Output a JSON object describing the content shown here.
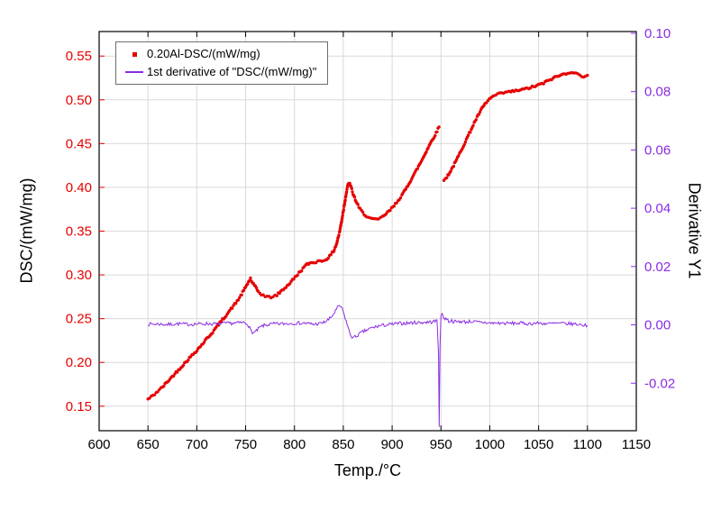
{
  "chart_data": {
    "type": "scatter+line",
    "title": "",
    "xlabel": "Temp./°C",
    "ylabel_left": "DSC/(mW/mg)",
    "ylabel_right": "Derivative Y1",
    "xlim": [
      600,
      1150
    ],
    "x_ticks": [
      600,
      650,
      700,
      750,
      800,
      850,
      900,
      950,
      1000,
      1050,
      1100,
      1150
    ],
    "ylim_left": [
      0.122,
      0.578
    ],
    "yticks_left": [
      0.15,
      0.2,
      0.25,
      0.3,
      0.35,
      0.4,
      0.45,
      0.5,
      0.55
    ],
    "ylim_right": [
      -0.0363,
      0.1006
    ],
    "yticks_right": [
      -0.02,
      0.0,
      0.02,
      0.04,
      0.06,
      0.08,
      0.1
    ],
    "grid": true,
    "legend_position": "top-left",
    "colors": {
      "grid": "#d9d9d9",
      "frame": "#000000",
      "left_axis": "#e60000",
      "right_axis": "#8a2be2",
      "x_tick": "#000000"
    },
    "legend": {
      "entries": [
        {
          "label": "0.20Al-DSC/(mW/mg)",
          "marker": "dot"
        },
        {
          "label": "1st derivative of \"DSC/(mW/mg)\"",
          "marker": "line"
        }
      ]
    },
    "series": [
      {
        "name": "0.20Al-DSC/(mW/mg)",
        "axis": "left",
        "type": "scatter",
        "color": "#e60000",
        "noise": 0.0012,
        "segments": [
          [
            [
              650,
              0.158
            ],
            [
              655,
              0.162
            ],
            [
              660,
              0.167
            ],
            [
              665,
              0.172
            ],
            [
              670,
              0.178
            ],
            [
              675,
              0.184
            ],
            [
              680,
              0.19
            ],
            [
              685,
              0.196
            ],
            [
              690,
              0.202
            ],
            [
              695,
              0.208
            ],
            [
              700,
              0.214
            ],
            [
              705,
              0.22
            ],
            [
              710,
              0.227
            ],
            [
              715,
              0.233
            ],
            [
              720,
              0.24
            ],
            [
              725,
              0.247
            ],
            [
              730,
              0.254
            ],
            [
              735,
              0.261
            ],
            [
              740,
              0.268
            ],
            [
              745,
              0.276
            ],
            [
              750,
              0.286
            ],
            [
              753,
              0.292
            ],
            [
              755,
              0.296
            ],
            [
              757,
              0.291
            ],
            [
              760,
              0.286
            ],
            [
              763,
              0.281
            ],
            [
              766,
              0.278
            ],
            [
              770,
              0.2755
            ],
            [
              774,
              0.2745
            ],
            [
              778,
              0.275
            ],
            [
              782,
              0.277
            ],
            [
              786,
              0.281
            ],
            [
              790,
              0.285
            ],
            [
              794,
              0.289
            ],
            [
              798,
              0.294
            ],
            [
              802,
              0.299
            ],
            [
              806,
              0.304
            ],
            [
              810,
              0.309
            ],
            [
              813,
              0.312
            ],
            [
              816,
              0.3135
            ],
            [
              820,
              0.3145
            ],
            [
              824,
              0.3155
            ],
            [
              828,
              0.316
            ],
            [
              832,
              0.3175
            ],
            [
              836,
              0.321
            ],
            [
              840,
              0.327
            ],
            [
              843,
              0.335
            ],
            [
              846,
              0.348
            ],
            [
              849,
              0.366
            ],
            [
              851,
              0.38
            ],
            [
              853,
              0.393
            ],
            [
              855,
              0.404
            ],
            [
              856,
              0.4055
            ],
            [
              858,
              0.4
            ],
            [
              860,
              0.3925
            ],
            [
              863,
              0.384
            ],
            [
              866,
              0.377
            ],
            [
              870,
              0.371
            ],
            [
              874,
              0.367
            ],
            [
              878,
              0.3645
            ],
            [
              882,
              0.363
            ],
            [
              886,
              0.3635
            ],
            [
              890,
              0.366
            ],
            [
              894,
              0.37
            ],
            [
              898,
              0.374
            ],
            [
              902,
              0.379
            ],
            [
              906,
              0.385
            ],
            [
              910,
              0.391
            ],
            [
              914,
              0.398
            ],
            [
              918,
              0.406
            ],
            [
              922,
              0.414
            ],
            [
              926,
              0.422
            ],
            [
              930,
              0.43
            ],
            [
              934,
              0.439
            ],
            [
              938,
              0.448
            ],
            [
              942,
              0.456
            ],
            [
              945,
              0.462
            ],
            [
              948,
              0.469
            ]
          ],
          [
            [
              953,
              0.408
            ],
            [
              956,
              0.412
            ],
            [
              959,
              0.417
            ],
            [
              962,
              0.423
            ],
            [
              965,
              0.429
            ],
            [
              968,
              0.436
            ],
            [
              971,
              0.443
            ],
            [
              974,
              0.45
            ],
            [
              977,
              0.457
            ],
            [
              980,
              0.464
            ],
            [
              983,
              0.471
            ],
            [
              986,
              0.478
            ],
            [
              989,
              0.484
            ],
            [
              992,
              0.49
            ],
            [
              995,
              0.495
            ],
            [
              998,
              0.499
            ],
            [
              1001,
              0.502
            ],
            [
              1004,
              0.5045
            ],
            [
              1008,
              0.506
            ],
            [
              1012,
              0.5075
            ],
            [
              1016,
              0.5085
            ],
            [
              1020,
              0.509
            ],
            [
              1025,
              0.51
            ],
            [
              1030,
              0.511
            ],
            [
              1035,
              0.512
            ],
            [
              1040,
              0.5135
            ],
            [
              1045,
              0.515
            ],
            [
              1050,
              0.517
            ],
            [
              1055,
              0.519
            ],
            [
              1060,
              0.522
            ],
            [
              1065,
              0.525
            ],
            [
              1070,
              0.527
            ],
            [
              1075,
              0.529
            ],
            [
              1080,
              0.531
            ],
            [
              1084,
              0.532
            ],
            [
              1088,
              0.53
            ],
            [
              1092,
              0.528
            ],
            [
              1096,
              0.527
            ],
            [
              1100,
              0.528
            ]
          ]
        ]
      },
      {
        "name": "1st derivative of \"DSC/(mW/mg)\"",
        "axis": "right",
        "type": "line",
        "color": "#8a2be2",
        "noise": 0.0006,
        "points": [
          [
            650,
            0.0002
          ],
          [
            660,
            0.0003
          ],
          [
            670,
            0.0001
          ],
          [
            680,
            0.0004
          ],
          [
            690,
            0.0002
          ],
          [
            700,
            0.0003
          ],
          [
            710,
            0.0004
          ],
          [
            720,
            0.0003
          ],
          [
            730,
            0.0005
          ],
          [
            740,
            0.0006
          ],
          [
            748,
            0.0008
          ],
          [
            752,
            0.0004
          ],
          [
            755,
            -0.0018
          ],
          [
            758,
            -0.0028
          ],
          [
            761,
            -0.0022
          ],
          [
            764,
            -0.001
          ],
          [
            768,
            -0.0003
          ],
          [
            772,
            0.0
          ],
          [
            776,
            0.0002
          ],
          [
            780,
            0.0003
          ],
          [
            790,
            0.0004
          ],
          [
            800,
            0.0006
          ],
          [
            810,
            0.0006
          ],
          [
            815,
            0.0004
          ],
          [
            820,
            0.0002
          ],
          [
            825,
            0.0004
          ],
          [
            830,
            0.0008
          ],
          [
            835,
            0.0018
          ],
          [
            838,
            0.0028
          ],
          [
            841,
            0.0042
          ],
          [
            844,
            0.0058
          ],
          [
            846,
            0.0066
          ],
          [
            848,
            0.006
          ],
          [
            850,
            0.0044
          ],
          [
            852,
            0.0022
          ],
          [
            854,
            0.0002
          ],
          [
            856,
            -0.0022
          ],
          [
            858,
            -0.0038
          ],
          [
            860,
            -0.0044
          ],
          [
            863,
            -0.004
          ],
          [
            866,
            -0.0032
          ],
          [
            870,
            -0.0024
          ],
          [
            874,
            -0.0018
          ],
          [
            878,
            -0.0012
          ],
          [
            882,
            -0.0008
          ],
          [
            886,
            -0.0004
          ],
          [
            890,
            -0.0002
          ],
          [
            895,
            0.0
          ],
          [
            900,
            0.0002
          ],
          [
            905,
            0.0004
          ],
          [
            910,
            0.0005
          ],
          [
            915,
            0.0006
          ],
          [
            920,
            0.0007
          ],
          [
            925,
            0.0008
          ],
          [
            930,
            0.0008
          ],
          [
            935,
            0.0009
          ],
          [
            940,
            0.001
          ],
          [
            944,
            0.0012
          ],
          [
            946,
            0.0015
          ],
          [
            947.5,
            -0.01
          ],
          [
            948.2,
            -0.0345
          ],
          [
            949,
            -0.008
          ],
          [
            950,
            0.003
          ],
          [
            951,
            0.0042
          ],
          [
            952.5,
            0.0028
          ],
          [
            954,
            0.0018
          ],
          [
            956,
            0.0022
          ],
          [
            958,
            0.0012
          ],
          [
            960,
            0.0015
          ],
          [
            965,
            0.001
          ],
          [
            970,
            0.0012
          ],
          [
            975,
            0.001
          ],
          [
            980,
            0.0012
          ],
          [
            985,
            0.001
          ],
          [
            990,
            0.0008
          ],
          [
            995,
            0.0008
          ],
          [
            1000,
            0.0006
          ],
          [
            1010,
            0.0006
          ],
          [
            1020,
            0.0005
          ],
          [
            1030,
            0.0006
          ],
          [
            1040,
            0.0004
          ],
          [
            1050,
            0.0006
          ],
          [
            1060,
            0.0004
          ],
          [
            1070,
            0.0005
          ],
          [
            1080,
            0.0004
          ],
          [
            1090,
            0.0002
          ],
          [
            1100,
            -0.0002
          ]
        ]
      }
    ]
  }
}
